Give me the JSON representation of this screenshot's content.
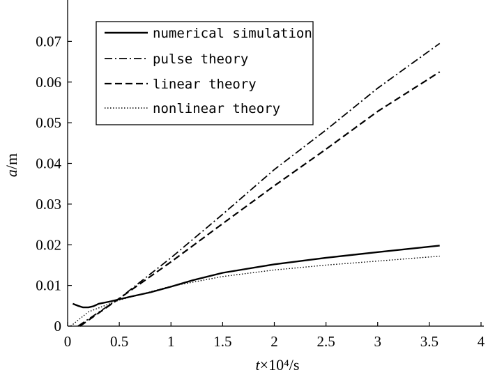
{
  "chart_data": {
    "type": "line",
    "xlabel_var": "t",
    "xlabel_unit": "×10⁴/s",
    "ylabel_var": "a",
    "ylabel_unit": "/m",
    "xlim": [
      0,
      4
    ],
    "ylim": [
      0,
      0.08
    ],
    "x_ticks": [
      0,
      0.5,
      1,
      1.5,
      2,
      2.5,
      3,
      3.5,
      4
    ],
    "x_tick_labels": [
      "0",
      "0.5",
      "1",
      "1.5",
      "2",
      "2.5",
      "3",
      "3.5",
      "4"
    ],
    "y_ticks": [
      0,
      0.01,
      0.02,
      0.03,
      0.04,
      0.05,
      0.06,
      0.07
    ],
    "y_tick_labels": [
      "0",
      "0.01",
      "0.02",
      "0.03",
      "0.04",
      "0.05",
      "0.06",
      "0.07"
    ],
    "grid": false,
    "legend_position": "top-left",
    "series": [
      {
        "name": "numerical simulation",
        "style": "solid",
        "x": [
          0.05,
          0.1,
          0.15,
          0.2,
          0.25,
          0.3,
          0.4,
          0.5,
          0.6,
          0.8,
          1.0,
          1.2,
          1.5,
          2.0,
          2.5,
          3.0,
          3.6
        ],
        "y": [
          0.0055,
          0.005,
          0.0046,
          0.0046,
          0.0049,
          0.0055,
          0.006,
          0.0066,
          0.0072,
          0.0083,
          0.0097,
          0.0112,
          0.0131,
          0.0152,
          0.0168,
          0.0182,
          0.0198
        ]
      },
      {
        "name": "pulse theory",
        "style": "dashdot",
        "x": [
          0.1,
          0.5,
          1.0,
          1.5,
          2.0,
          2.5,
          3.0,
          3.6
        ],
        "y": [
          0.0,
          0.0068,
          0.0168,
          0.0275,
          0.0385,
          0.0482,
          0.0585,
          0.0695
        ]
      },
      {
        "name": "linear theory",
        "style": "dashed",
        "x": [
          0.12,
          0.5,
          1.0,
          1.5,
          2.0,
          2.5,
          3.0,
          3.6
        ],
        "y": [
          0.0,
          0.0068,
          0.0158,
          0.0252,
          0.0345,
          0.0435,
          0.0528,
          0.0625
        ]
      },
      {
        "name": "nonlinear theory",
        "style": "dotted",
        "x": [
          0.03,
          0.2,
          0.5,
          1.0,
          1.5,
          2.0,
          2.5,
          3.0,
          3.6
        ],
        "y": [
          0.0,
          0.0035,
          0.0064,
          0.0098,
          0.0122,
          0.0138,
          0.015,
          0.016,
          0.0172
        ]
      }
    ]
  }
}
